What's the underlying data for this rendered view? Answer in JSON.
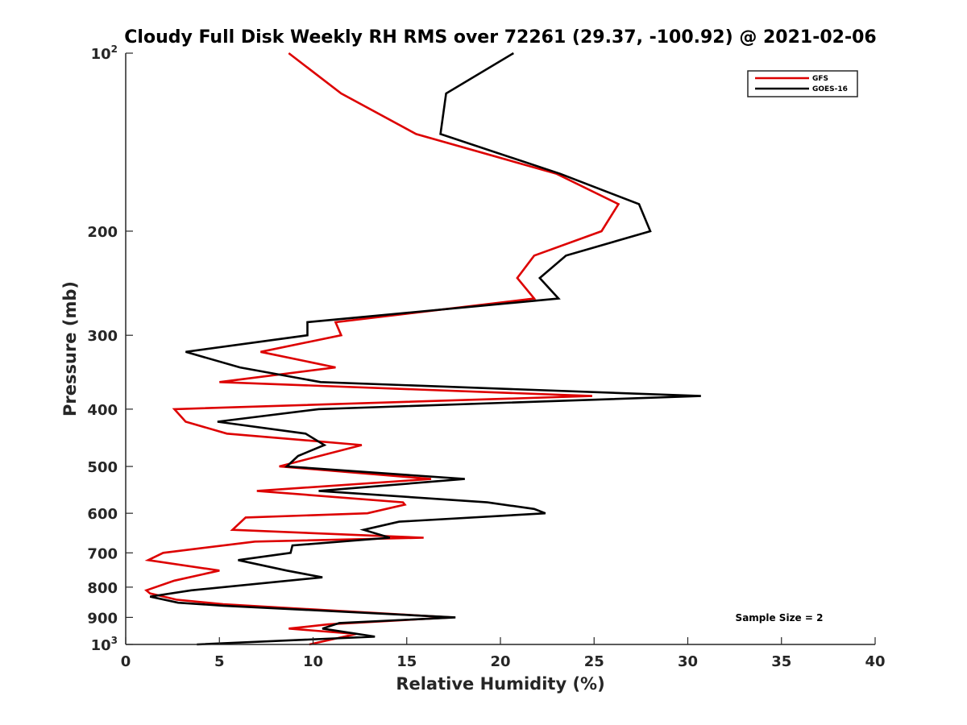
{
  "chart_data": {
    "type": "line",
    "title": "Cloudy Full Disk Weekly RH RMS over 72261 (29.37, -100.92) @ 2021-02-06",
    "xlabel": "Relative Humidity (%)",
    "ylabel": "Pressure (mb)",
    "xlim": [
      0,
      40
    ],
    "ylim": [
      100,
      1000
    ],
    "yscale": "log",
    "y_reversed": true,
    "x_ticks": [
      0,
      5,
      10,
      15,
      20,
      25,
      30,
      35,
      40
    ],
    "y_ticks": [
      {
        "value": 100,
        "base": "10",
        "exp": "2"
      },
      {
        "value": 200,
        "label": "200"
      },
      {
        "value": 300,
        "label": "300"
      },
      {
        "value": 400,
        "label": "400"
      },
      {
        "value": 500,
        "label": "500"
      },
      {
        "value": 600,
        "label": "600"
      },
      {
        "value": 700,
        "label": "700"
      },
      {
        "value": 800,
        "label": "800"
      },
      {
        "value": 900,
        "label": "900"
      },
      {
        "value": 1000,
        "base": "10",
        "exp": "3"
      }
    ],
    "legend_position": "top-right",
    "grid": false,
    "series": [
      {
        "name": "GFS",
        "color": "#dd0000",
        "points": [
          [
            8.7,
            100
          ],
          [
            11.5,
            117
          ],
          [
            15.5,
            137
          ],
          [
            23.0,
            160
          ],
          [
            26.3,
            180
          ],
          [
            25.4,
            200
          ],
          [
            21.8,
            220
          ],
          [
            20.9,
            240
          ],
          [
            21.8,
            260
          ],
          [
            11.2,
            285
          ],
          [
            11.5,
            300
          ],
          [
            7.2,
            320
          ],
          [
            11.2,
            340
          ],
          [
            5.0,
            360
          ],
          [
            24.9,
            380
          ],
          [
            2.6,
            400
          ],
          [
            3.2,
            420
          ],
          [
            5.4,
            440
          ],
          [
            12.6,
            460
          ],
          [
            8.2,
            500
          ],
          [
            16.3,
            525
          ],
          [
            7.0,
            550
          ],
          [
            14.8,
            575
          ],
          [
            14.9,
            580
          ],
          [
            12.9,
            600
          ],
          [
            6.4,
            610
          ],
          [
            5.7,
            640
          ],
          [
            15.9,
            660
          ],
          [
            6.9,
            670
          ],
          [
            2.0,
            700
          ],
          [
            1.2,
            720
          ],
          [
            5.0,
            750
          ],
          [
            2.6,
            780
          ],
          [
            1.1,
            810
          ],
          [
            1.3,
            820
          ],
          [
            2.7,
            840
          ],
          [
            5.2,
            855
          ],
          [
            17.4,
            900
          ],
          [
            10.8,
            925
          ],
          [
            8.7,
            940
          ],
          [
            12.3,
            960
          ],
          [
            9.8,
            1000
          ]
        ]
      },
      {
        "name": "GOES-16",
        "color": "#000000",
        "points": [
          [
            20.7,
            100
          ],
          [
            17.1,
            117
          ],
          [
            16.8,
            137
          ],
          [
            23.2,
            160
          ],
          [
            27.4,
            180
          ],
          [
            28.0,
            200
          ],
          [
            23.5,
            220
          ],
          [
            22.1,
            240
          ],
          [
            23.1,
            260
          ],
          [
            9.7,
            285
          ],
          [
            9.7,
            300
          ],
          [
            3.2,
            320
          ],
          [
            6.1,
            340
          ],
          [
            10.4,
            360
          ],
          [
            30.7,
            380
          ],
          [
            10.3,
            400
          ],
          [
            4.9,
            420
          ],
          [
            9.6,
            440
          ],
          [
            10.6,
            460
          ],
          [
            9.2,
            480
          ],
          [
            8.6,
            500
          ],
          [
            18.1,
            525
          ],
          [
            10.3,
            550
          ],
          [
            19.3,
            575
          ],
          [
            21.8,
            590
          ],
          [
            22.4,
            600
          ],
          [
            14.6,
            620
          ],
          [
            12.7,
            640
          ],
          [
            14.1,
            660
          ],
          [
            8.9,
            680
          ],
          [
            8.8,
            700
          ],
          [
            6.0,
            720
          ],
          [
            8.6,
            750
          ],
          [
            10.5,
            770
          ],
          [
            3.5,
            810
          ],
          [
            1.3,
            830
          ],
          [
            2.8,
            850
          ],
          [
            5.2,
            860
          ],
          [
            17.6,
            900
          ],
          [
            11.4,
            920
          ],
          [
            10.5,
            940
          ],
          [
            13.3,
            970
          ],
          [
            3.8,
            1000
          ]
        ]
      }
    ],
    "annotation": "Sample Size = 2"
  }
}
